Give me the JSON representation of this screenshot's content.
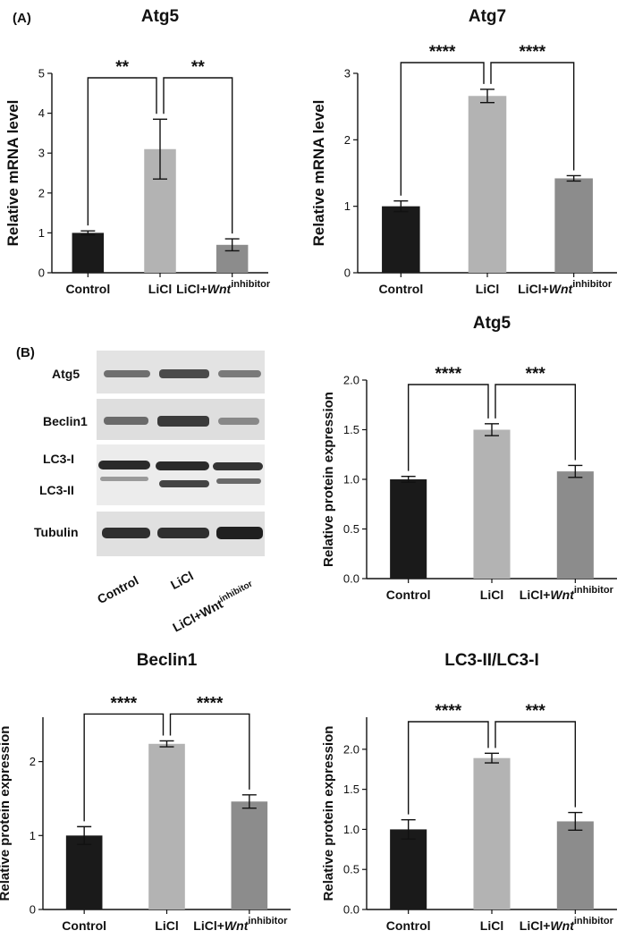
{
  "panel_letters": {
    "a": "(A)",
    "b": "(B)"
  },
  "blot": {
    "rows": [
      "Atg5",
      "Beclin1",
      "LC3-I",
      "LC3-II",
      "Tubulin"
    ],
    "lanes": [
      "Control",
      "LiCl",
      "LiCl+Wnt",
      "inhibitor"
    ]
  },
  "chart_data": [
    {
      "id": "atg5-mrna",
      "type": "bar",
      "title": "Atg5",
      "ylabel": "Relative mRNA level",
      "ylim": [
        0,
        5
      ],
      "yticks": [
        "0",
        "1",
        "2",
        "3",
        "4",
        "5"
      ],
      "categories": [
        "Control",
        "LiCl",
        "LiCl+Wnt"
      ],
      "category_superscript": "inhibitor",
      "values": [
        1.0,
        3.1,
        0.7
      ],
      "errors": [
        0.05,
        0.75,
        0.15
      ],
      "bar_colors": [
        "#1a1a1a",
        "#b3b3b3",
        "#8c8c8c"
      ],
      "significance": [
        "**",
        "**"
      ]
    },
    {
      "id": "atg7-mrna",
      "type": "bar",
      "title": "Atg7",
      "ylabel": "Relative mRNA level",
      "ylim": [
        0,
        3
      ],
      "yticks": [
        "0",
        "1",
        "2",
        "3"
      ],
      "categories": [
        "Control",
        "LiCl",
        "LiCl+Wnt"
      ],
      "category_superscript": "inhibitor",
      "values": [
        1.0,
        2.66,
        1.42
      ],
      "errors": [
        0.08,
        0.1,
        0.04
      ],
      "bar_colors": [
        "#1a1a1a",
        "#b3b3b3",
        "#8c8c8c"
      ],
      "significance": [
        "****",
        "****"
      ]
    },
    {
      "id": "atg5-protein",
      "type": "bar",
      "title": "Atg5",
      "ylabel": "Relative protein expression",
      "ylim": [
        0,
        2
      ],
      "yticks": [
        "0.0",
        "0.5",
        "1.0",
        "1.5",
        "2.0"
      ],
      "categories": [
        "Control",
        "LiCl",
        "LiCl+Wnt"
      ],
      "category_superscript": "inhibitor",
      "values": [
        1.0,
        1.5,
        1.08
      ],
      "errors": [
        0.03,
        0.06,
        0.06
      ],
      "bar_colors": [
        "#1a1a1a",
        "#b3b3b3",
        "#8c8c8c"
      ],
      "significance": [
        "****",
        "***"
      ]
    },
    {
      "id": "beclin1-protein",
      "type": "bar",
      "title": "Beclin1",
      "ylabel": "Relative protein expression",
      "ylim": [
        0,
        2.6
      ],
      "yticks": [
        "0",
        "1",
        "2"
      ],
      "ytick_values": [
        0,
        1,
        2
      ],
      "categories": [
        "Control",
        "LiCl",
        "LiCl+Wnt"
      ],
      "category_superscript": "inhibitor",
      "values": [
        1.0,
        2.24,
        1.46
      ],
      "errors": [
        0.12,
        0.04,
        0.09
      ],
      "bar_colors": [
        "#1a1a1a",
        "#b3b3b3",
        "#8c8c8c"
      ],
      "significance": [
        "****",
        "****"
      ]
    },
    {
      "id": "lc3-ratio",
      "type": "bar",
      "title": "LC3-II/LC3-I",
      "ylabel": "Relative protein expression",
      "ylim": [
        0,
        2.4
      ],
      "yticks": [
        "0.0",
        "0.5",
        "1.0",
        "1.5",
        "2.0"
      ],
      "ytick_values": [
        0,
        0.5,
        1.0,
        1.5,
        2.0
      ],
      "categories": [
        "Control",
        "LiCl",
        "LiCl+Wnt"
      ],
      "category_superscript": "inhibitor",
      "values": [
        1.0,
        1.89,
        1.1
      ],
      "errors": [
        0.12,
        0.06,
        0.11
      ],
      "bar_colors": [
        "#1a1a1a",
        "#b3b3b3",
        "#8c8c8c"
      ],
      "significance": [
        "****",
        "***"
      ]
    }
  ]
}
